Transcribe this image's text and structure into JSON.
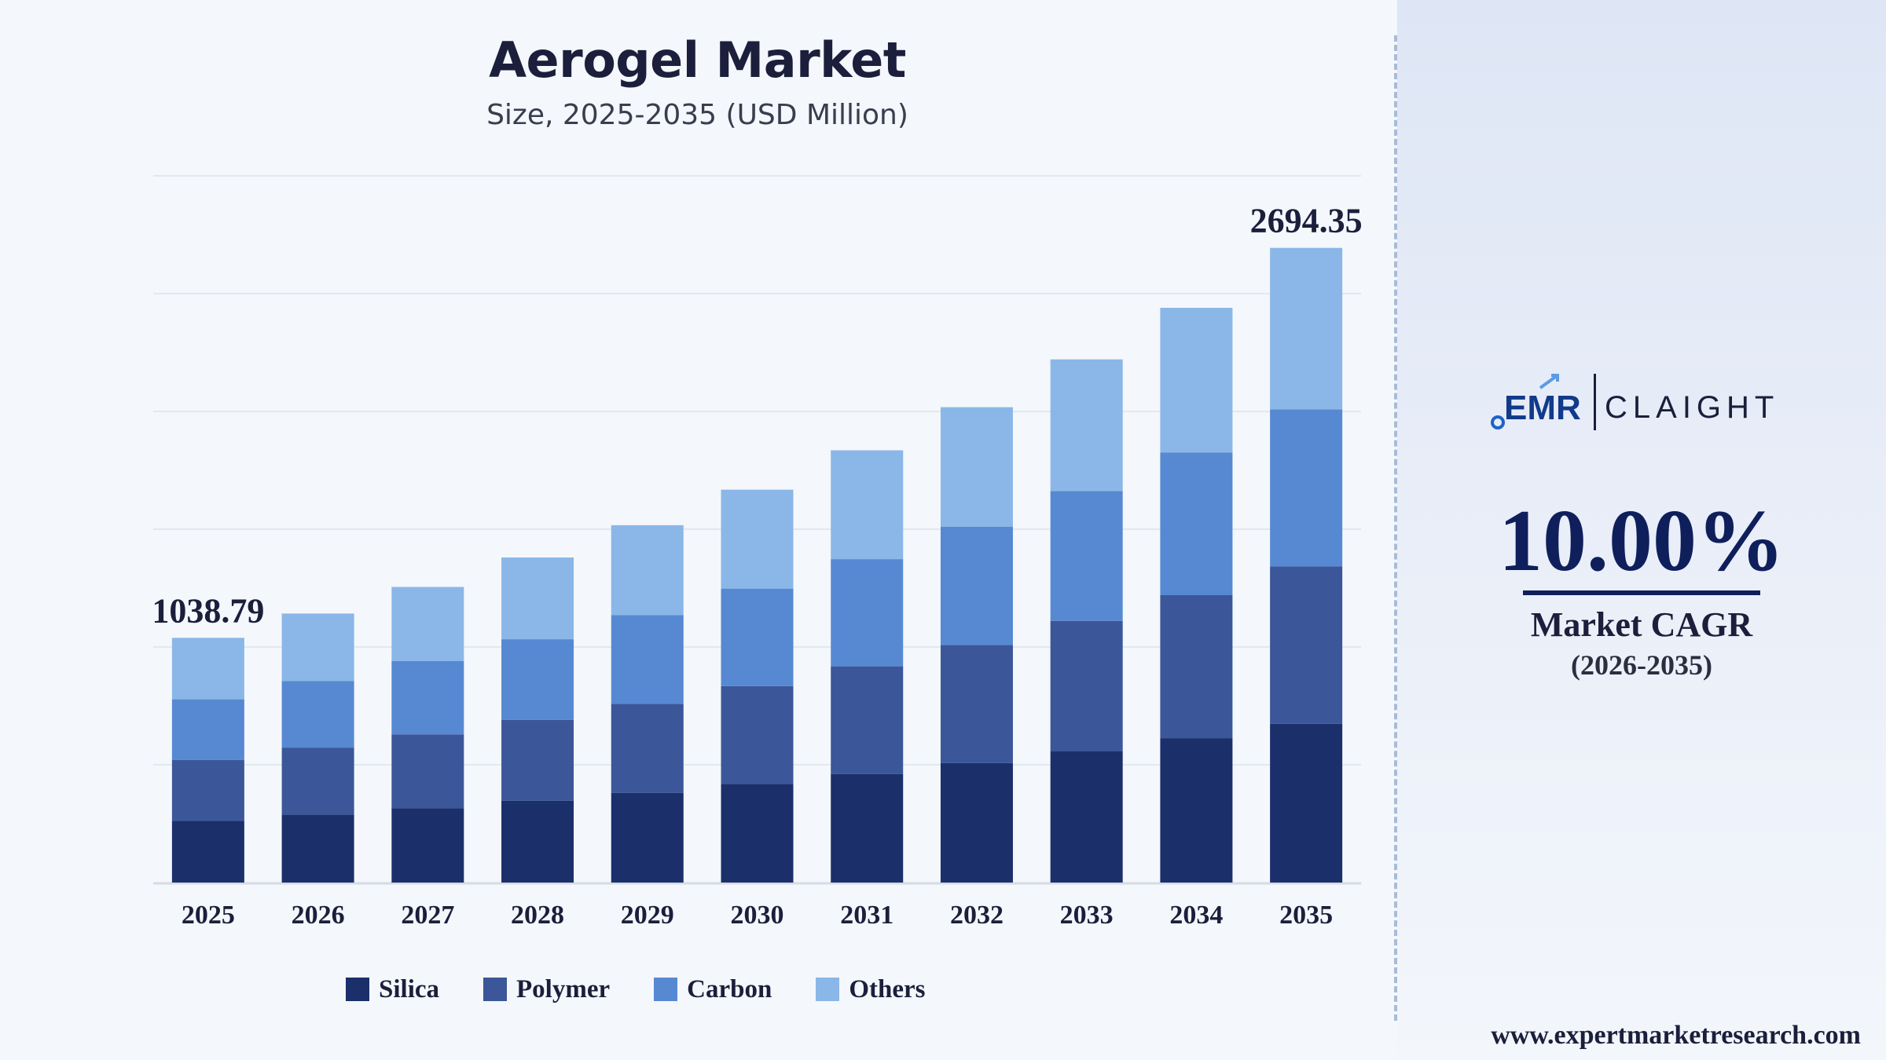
{
  "header": {
    "title": "Aerogel Market",
    "subtitle": "Size, 2025-2035 (USD Million)"
  },
  "chart_data": {
    "type": "bar",
    "stacked": true,
    "title": "Aerogel Market",
    "subtitle": "Size, 2025-2035 (USD Million)",
    "xlabel": "",
    "ylabel": "",
    "ylim": [
      0,
      3000
    ],
    "grid": true,
    "legend_position": "bottom",
    "categories": [
      "2025",
      "2026",
      "2027",
      "2028",
      "2029",
      "2030",
      "2031",
      "2032",
      "2033",
      "2034",
      "2035"
    ],
    "series": [
      {
        "name": "Silica",
        "color": "#1b2f6b",
        "values": [
          262,
          288,
          316,
          347,
          381,
          419,
          461,
          507,
          558,
          613,
          674
        ]
      },
      {
        "name": "Polymer",
        "color": "#3b5799",
        "values": [
          259,
          285,
          313,
          344,
          378,
          415,
          457,
          502,
          553,
          607,
          668
        ]
      },
      {
        "name": "Carbon",
        "color": "#5689d2",
        "values": [
          257,
          283,
          311,
          342,
          376,
          414,
          455,
          501,
          551,
          606,
          667
        ]
      },
      {
        "name": "Others",
        "color": "#8ab7e8",
        "values": [
          260.79,
          286,
          315,
          347,
          382,
          420,
          462,
          508,
          559,
          614,
          685.35
        ]
      }
    ],
    "data_labels": [
      {
        "category": "2025",
        "text": "1038.79"
      },
      {
        "category": "2035",
        "text": "2694.35"
      }
    ]
  },
  "sidebar": {
    "logo_text": "EMR",
    "logo_secondary": "CLAIGHT",
    "cagr_value": "10.00%",
    "cagr_label": "Market CAGR",
    "cagr_period": "(2026-2035)"
  },
  "footer": {
    "website": "www.expertmarketresearch.com"
  }
}
